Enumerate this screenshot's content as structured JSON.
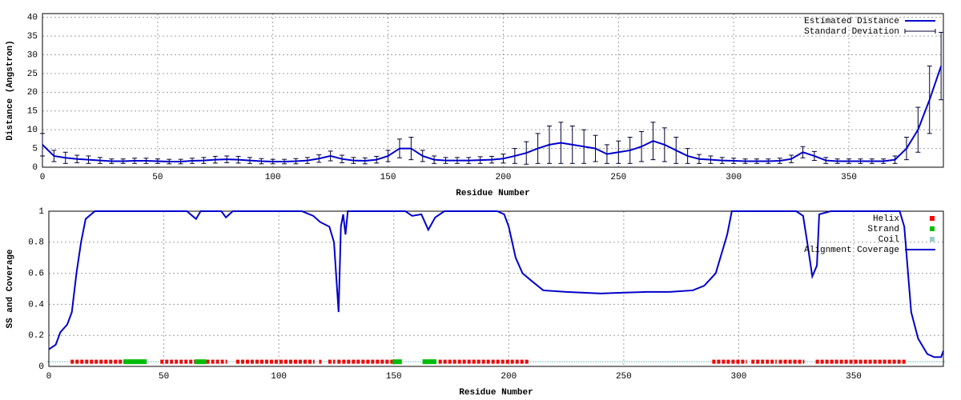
{
  "chart_data": [
    {
      "type": "line",
      "x_label": "Residue Number",
      "y_label": "Distance (Angstron)",
      "xlim": [
        0,
        391
      ],
      "ylim": [
        0,
        41
      ],
      "xticks": [
        0,
        50,
        100,
        150,
        200,
        250,
        300,
        350
      ],
      "yticks": [
        0,
        5,
        10,
        15,
        20,
        25,
        30,
        35,
        40
      ],
      "grid": true,
      "legend": "upper right",
      "x": [
        0,
        5,
        10,
        15,
        20,
        25,
        30,
        35,
        40,
        45,
        50,
        55,
        60,
        65,
        70,
        75,
        80,
        85,
        90,
        95,
        100,
        105,
        110,
        115,
        120,
        125,
        130,
        135,
        140,
        145,
        150,
        155,
        160,
        165,
        170,
        175,
        180,
        185,
        190,
        195,
        200,
        205,
        210,
        215,
        220,
        225,
        230,
        235,
        240,
        245,
        250,
        255,
        260,
        265,
        270,
        275,
        280,
        285,
        290,
        295,
        300,
        305,
        310,
        315,
        320,
        325,
        330,
        335,
        340,
        345,
        350,
        355,
        360,
        365,
        370,
        375,
        380,
        385,
        390
      ],
      "series": [
        {
          "name": "Estimated Distance",
          "color": "#0000cc",
          "error_name": "Standard Deviation",
          "values": [
            6,
            3,
            2.5,
            2.2,
            2,
            1.8,
            1.6,
            1.6,
            1.7,
            1.7,
            1.6,
            1.5,
            1.5,
            1.7,
            1.8,
            2,
            2.1,
            2,
            1.8,
            1.6,
            1.5,
            1.5,
            1.6,
            1.8,
            2.3,
            3,
            2.2,
            1.8,
            1.7,
            2,
            3,
            5,
            5,
            3,
            2,
            1.8,
            1.8,
            1.8,
            1.9,
            2,
            2.3,
            3,
            3.8,
            5,
            6,
            6.5,
            6,
            5.5,
            5,
            3.5,
            4,
            4.5,
            5.5,
            7,
            6,
            4.5,
            3,
            2.2,
            2,
            1.8,
            1.7,
            1.6,
            1.6,
            1.6,
            1.7,
            2.2,
            4,
            3,
            1.8,
            1.6,
            1.6,
            1.6,
            1.6,
            1.6,
            2,
            5,
            10,
            18,
            27
          ],
          "errors": [
            3,
            1.5,
            1.5,
            1,
            1,
            0.8,
            0.6,
            0.6,
            0.7,
            0.7,
            0.6,
            0.6,
            0.6,
            0.7,
            0.8,
            0.9,
            0.9,
            0.9,
            0.8,
            0.7,
            0.6,
            0.6,
            0.7,
            0.8,
            1,
            1.3,
            1,
            0.8,
            0.8,
            0.9,
            1.5,
            2.5,
            3,
            1.5,
            1,
            0.8,
            0.8,
            0.8,
            0.9,
            0.9,
            1.2,
            2,
            3,
            4,
            5,
            5.5,
            5,
            4.5,
            3.5,
            2.5,
            3,
            3.5,
            4,
            5,
            4.5,
            3.5,
            2,
            1.2,
            1,
            0.8,
            0.7,
            0.6,
            0.6,
            0.6,
            0.7,
            1,
            1.5,
            1.2,
            0.8,
            0.6,
            0.6,
            0.6,
            0.6,
            0.6,
            1,
            3,
            6,
            9,
            9
          ]
        }
      ]
    },
    {
      "type": "line",
      "x_label": "Residue Number",
      "y_label": "SS and Coverage",
      "xlim": [
        0,
        389
      ],
      "ylim": [
        0,
        1
      ],
      "xticks": [
        0,
        50,
        100,
        150,
        200,
        250,
        300,
        350
      ],
      "yticks": [
        0,
        0.2,
        0.4,
        0.6,
        0.8,
        1
      ],
      "grid": true,
      "legend": "upper right",
      "ss_level": 0.03,
      "ss": [
        {
          "name": "Helix",
          "color": "#ff0000",
          "ranges": [
            [
              10,
              33
            ],
            [
              49,
              64
            ],
            [
              69,
              77
            ],
            [
              82,
              115
            ],
            [
              118,
              118
            ],
            [
              122,
              124
            ],
            [
              126,
              150
            ],
            [
              170,
              208
            ],
            [
              289,
              303
            ],
            [
              306,
              316
            ],
            [
              318,
              328
            ],
            [
              334,
              372
            ]
          ]
        },
        {
          "name": "Strand",
          "color": "#00c000",
          "ranges": [
            [
              33,
              42
            ],
            [
              64,
              68
            ],
            [
              150,
              153
            ],
            [
              163,
              168
            ]
          ]
        },
        {
          "name": "Coil",
          "color": "#008080",
          "ranges": [
            [
              0,
              389
            ]
          ]
        }
      ],
      "x": [
        0,
        3,
        5,
        8,
        10,
        12,
        14,
        16,
        20,
        60,
        64,
        66,
        75,
        77,
        80,
        110,
        115,
        118,
        122,
        124,
        126,
        127,
        128,
        129,
        130,
        150,
        155,
        158,
        162,
        165,
        168,
        172,
        195,
        198,
        200,
        203,
        206,
        210,
        215,
        225,
        240,
        260,
        270,
        280,
        285,
        290,
        295,
        297,
        325,
        328,
        330,
        332,
        334,
        335,
        340,
        370,
        372,
        375,
        378,
        382,
        385,
        388,
        389
      ],
      "series": [
        {
          "name": "Alignment Coverage",
          "color": "#0000cc",
          "values": [
            0.11,
            0.14,
            0.22,
            0.27,
            0.35,
            0.6,
            0.8,
            0.95,
            1,
            1,
            0.95,
            1,
            1,
            0.96,
            1,
            1,
            0.97,
            0.93,
            0.9,
            0.8,
            0.35,
            0.9,
            0.98,
            0.85,
            1,
            1,
            1,
            0.97,
            0.98,
            0.88,
            0.96,
            1,
            1,
            0.98,
            0.9,
            0.7,
            0.6,
            0.55,
            0.49,
            0.48,
            0.47,
            0.48,
            0.48,
            0.49,
            0.52,
            0.6,
            0.85,
            1,
            1,
            0.97,
            0.78,
            0.58,
            0.65,
            0.98,
            1,
            1,
            0.9,
            0.35,
            0.18,
            0.08,
            0.06,
            0.06,
            0.1
          ]
        }
      ]
    }
  ]
}
